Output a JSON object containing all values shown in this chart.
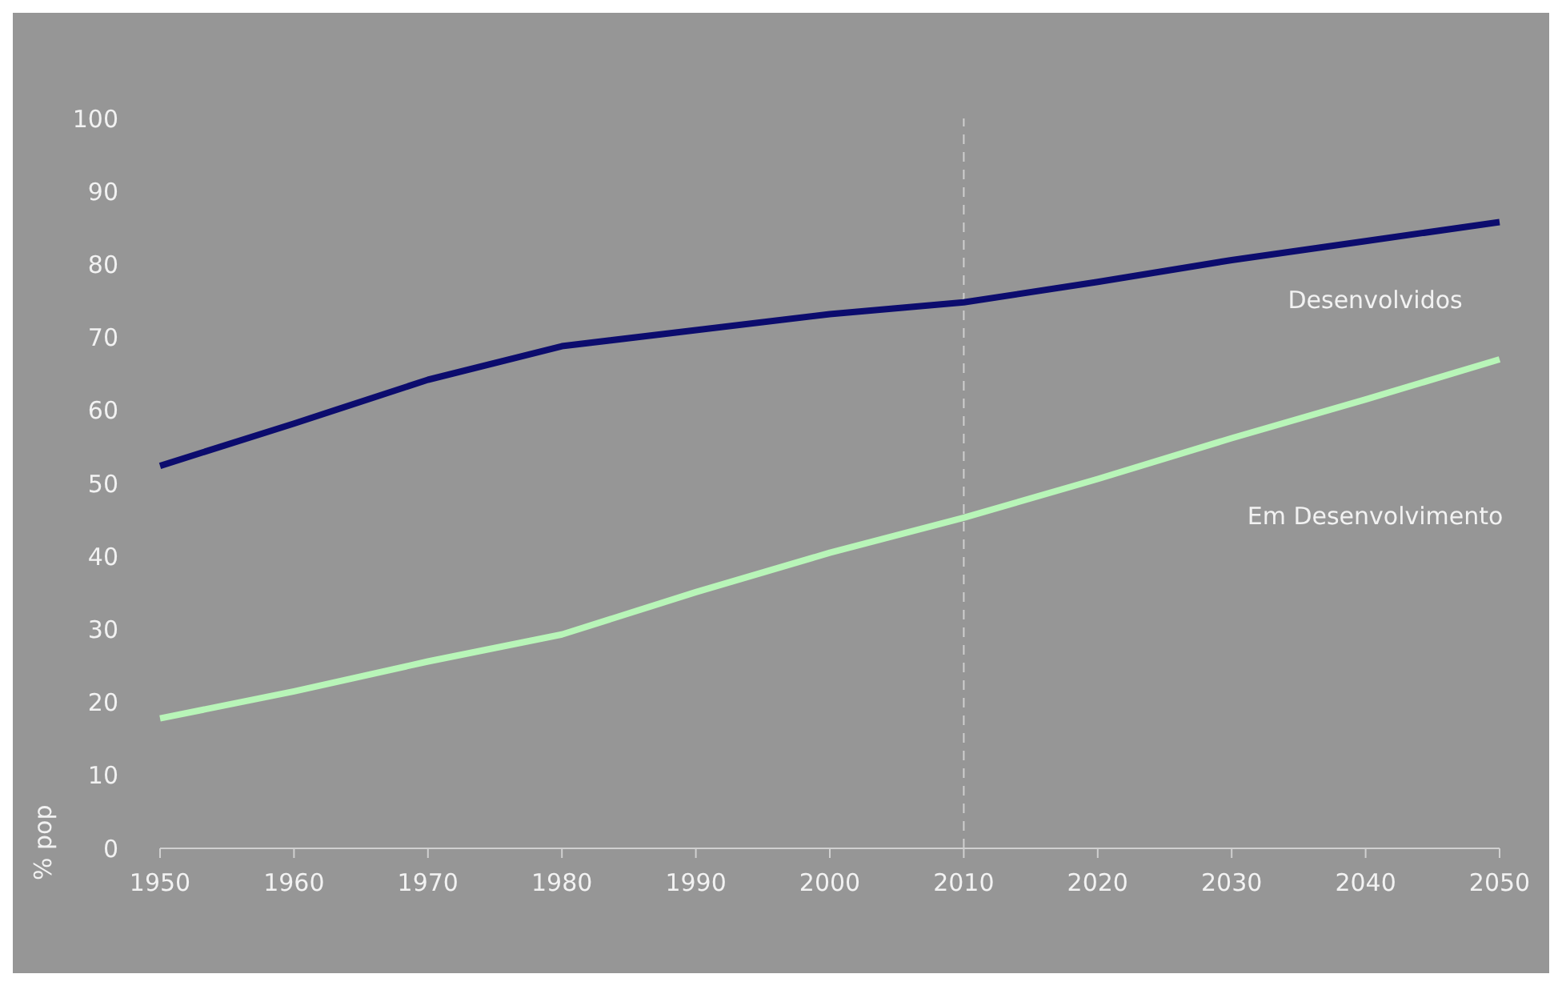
{
  "chart_data": {
    "type": "line",
    "ylabel": "% pop",
    "categories": [
      "1950",
      "1960",
      "1970",
      "1980",
      "1990",
      "2000",
      "2010",
      "2020",
      "2030",
      "2040",
      "2050"
    ],
    "series": [
      {
        "name": "Desenvolvidos",
        "color": "#0c0c6e",
        "values": [
          52.4,
          58.2,
          64.2,
          68.8,
          71,
          73.2,
          74.8,
          77.6,
          80.6,
          83.2,
          85.8
        ]
      },
      {
        "name": "Em Desenvolvimento",
        "color": "#b8f5b8",
        "values": [
          17.8,
          21.5,
          25.6,
          29.3,
          35.1,
          40.5,
          45.3,
          50.6,
          56.2,
          61.5,
          67
        ]
      }
    ],
    "ylim": [
      0,
      100
    ],
    "yticks": [
      0,
      10,
      20,
      30,
      40,
      50,
      60,
      70,
      80,
      90,
      100
    ],
    "grid": false,
    "legend": false,
    "marker": "none",
    "line_style": "solid",
    "ref_lines": [
      {
        "axis": "x",
        "value": "2010",
        "color": "#cfcfcf",
        "line_style": "dashed"
      }
    ]
  }
}
